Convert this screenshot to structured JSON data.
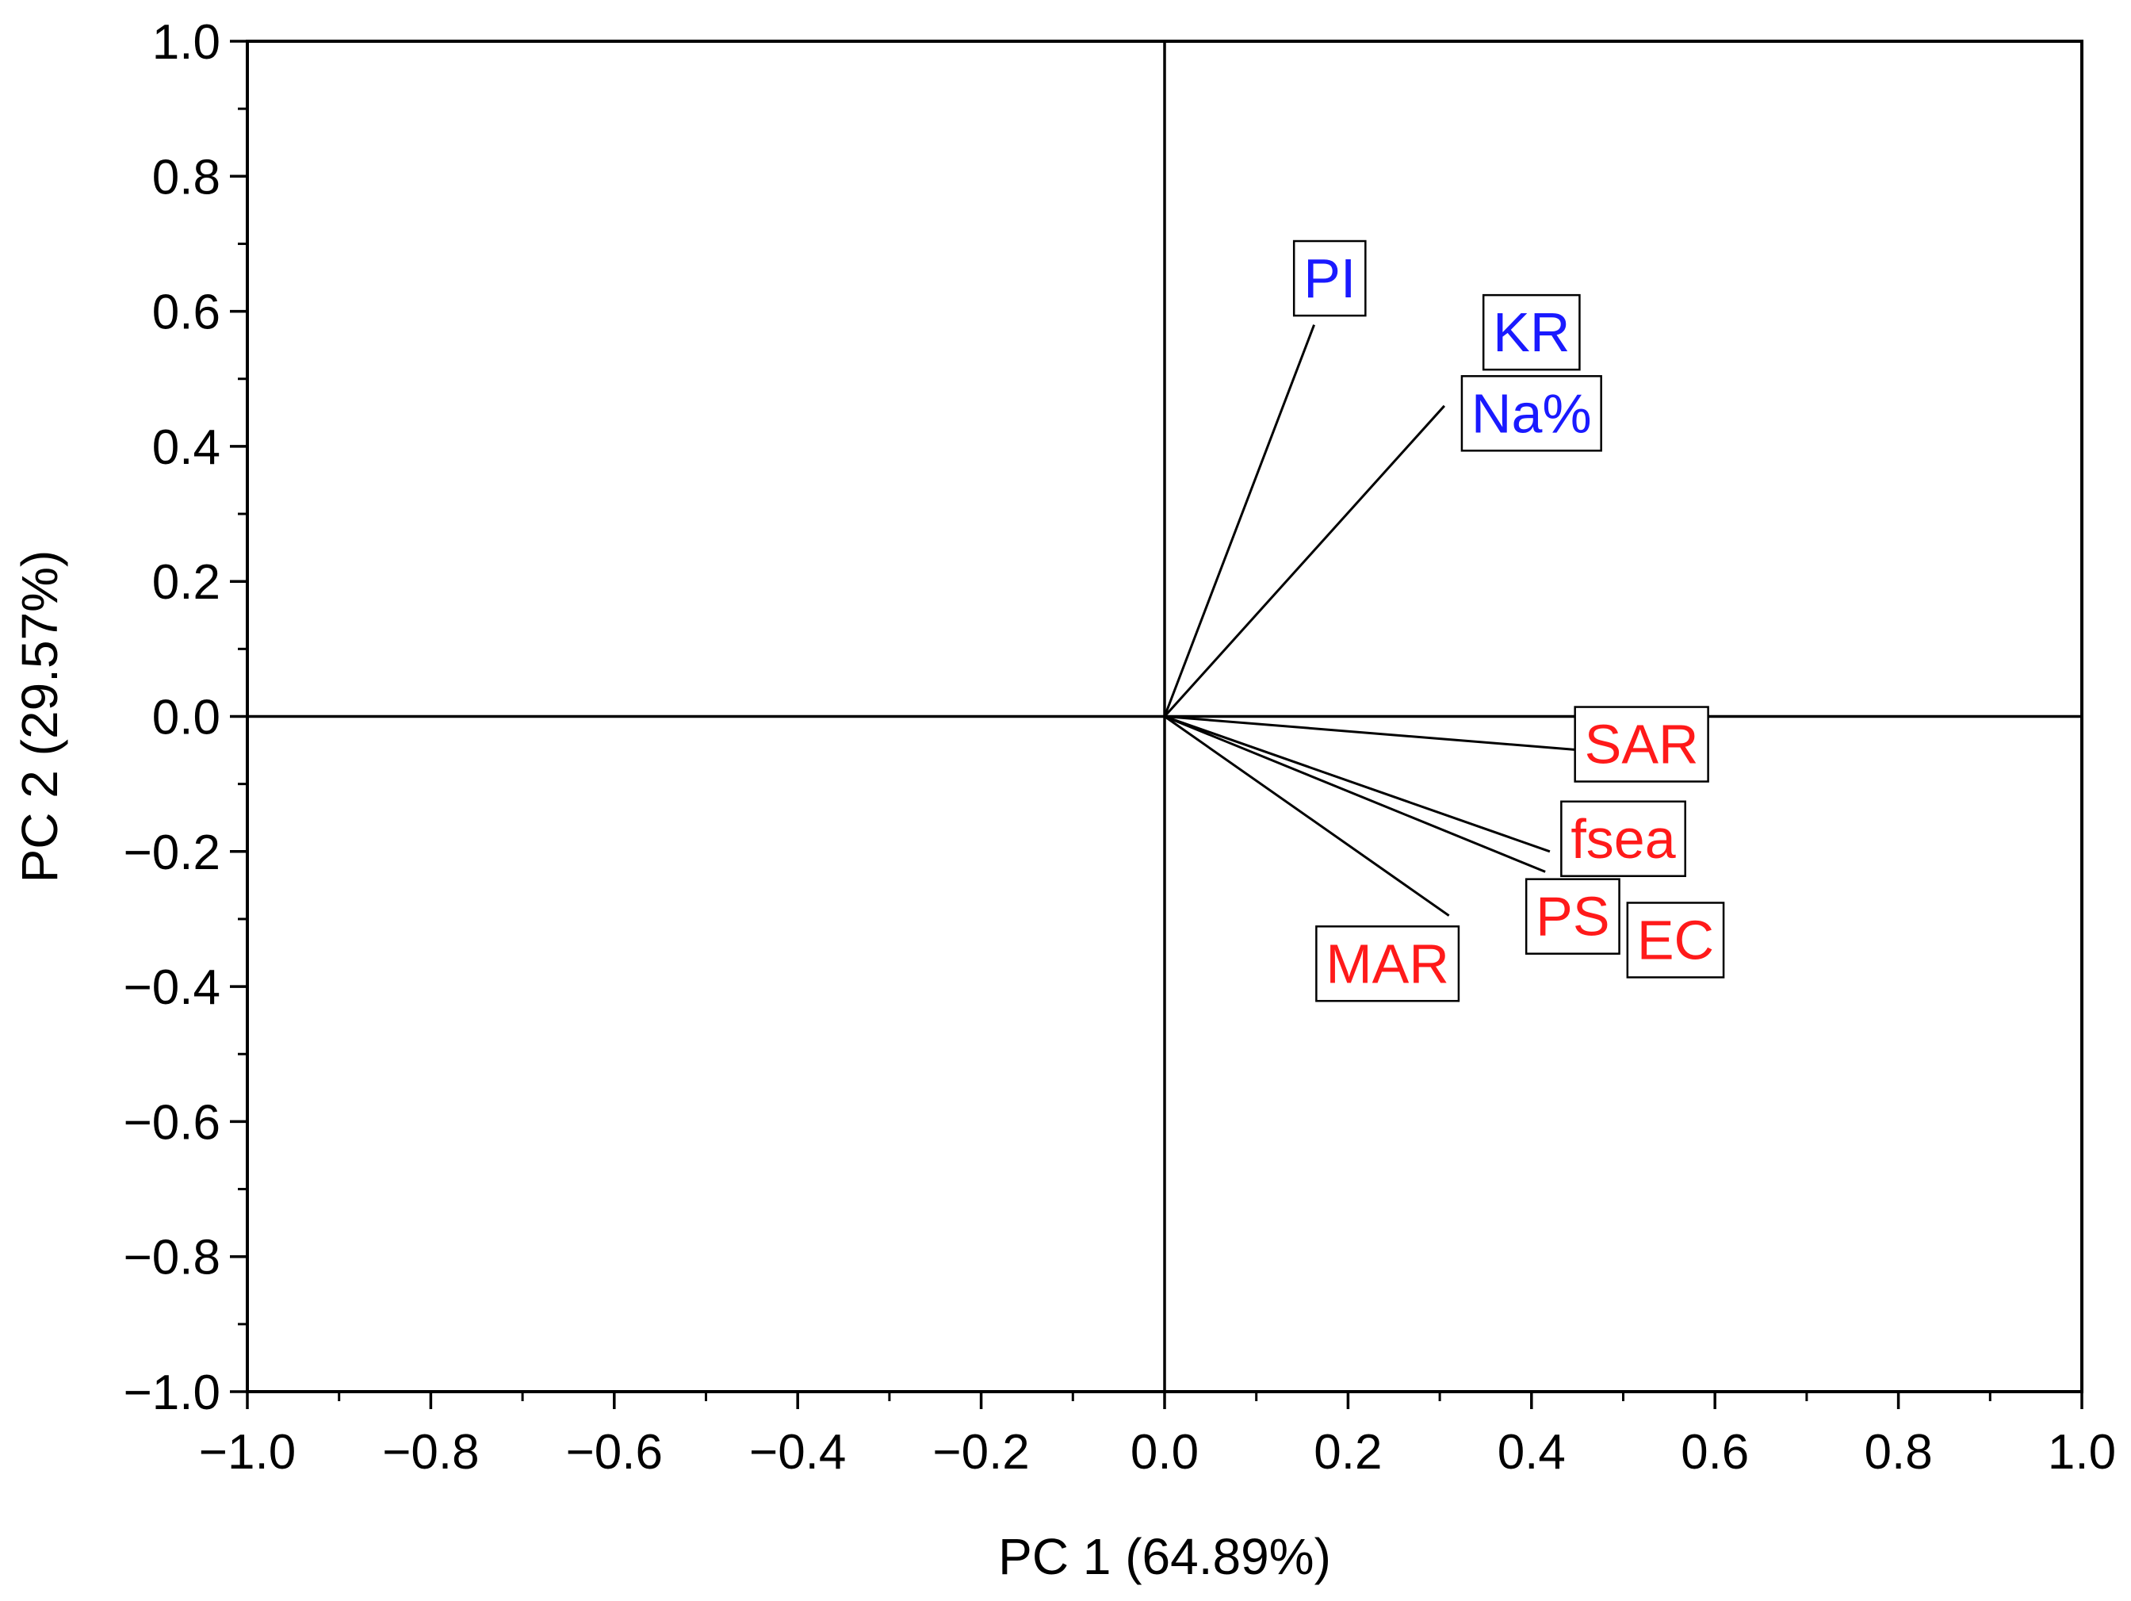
{
  "chart_data": {
    "type": "scatter",
    "subtype": "pca-loading-plot",
    "title": "",
    "xlabel": "PC 1 (64.89%)",
    "ylabel": "PC 2 (29.57%)",
    "xlim": [
      -1.0,
      1.0
    ],
    "ylim": [
      -1.0,
      1.0
    ],
    "x_ticks": [
      -1.0,
      -0.8,
      -0.6,
      -0.4,
      -0.2,
      0.0,
      0.2,
      0.4,
      0.6,
      0.8,
      1.0
    ],
    "y_ticks": [
      -1.0,
      -0.8,
      -0.6,
      -0.4,
      -0.2,
      0.0,
      0.2,
      0.4,
      0.6,
      0.8,
      1.0
    ],
    "x_tick_labels": [
      "−1.0",
      "−0.8",
      "−0.6",
      "−0.4",
      "−0.2",
      "0.0",
      "0.2",
      "0.4",
      "0.6",
      "0.8",
      "1.0"
    ],
    "y_tick_labels": [
      "−1.0",
      "−0.8",
      "−0.6",
      "−0.4",
      "−0.2",
      "0.0",
      "0.2",
      "0.4",
      "0.6",
      "0.8",
      "1.0"
    ],
    "grid": false,
    "zero_lines": true,
    "colors": {
      "group1": "#1a1aff",
      "group2": "#ff1a1a",
      "vector": "#000000"
    },
    "vectors": [
      {
        "name": "PI",
        "x": 0.163,
        "y": 0.58,
        "group": "group1",
        "label_anchor": [
          0.18,
          0.65
        ]
      },
      {
        "name": "KR",
        "x": 0.305,
        "y": 0.46,
        "group": "group1",
        "label_anchor": [
          0.4,
          0.57
        ]
      },
      {
        "name": "Na%",
        "x": 0.305,
        "y": 0.46,
        "group": "group1",
        "label_anchor": [
          0.4,
          0.45
        ]
      },
      {
        "name": "SAR",
        "x": 0.455,
        "y": -0.05,
        "group": "group2",
        "label_anchor": [
          0.52,
          -0.04
        ]
      },
      {
        "name": "fsea",
        "x": 0.42,
        "y": -0.2,
        "group": "group2",
        "label_anchor": [
          0.5,
          -0.18
        ]
      },
      {
        "name": "PS",
        "x": 0.415,
        "y": -0.23,
        "group": "group2",
        "label_anchor": [
          0.445,
          -0.295
        ]
      },
      {
        "name": "EC",
        "x": 0.415,
        "y": -0.23,
        "group": "group2",
        "label_anchor": [
          0.557,
          -0.33
        ]
      },
      {
        "name": "MAR",
        "x": 0.31,
        "y": -0.295,
        "group": "group2",
        "label_anchor": [
          0.243,
          -0.365
        ]
      }
    ]
  }
}
